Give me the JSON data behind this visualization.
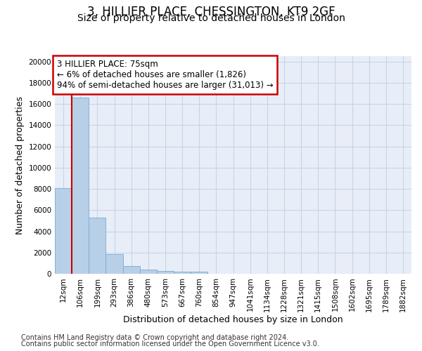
{
  "title_line1": "3, HILLIER PLACE, CHESSINGTON, KT9 2GF",
  "title_line2": "Size of property relative to detached houses in London",
  "xlabel": "Distribution of detached houses by size in London",
  "ylabel": "Number of detached properties",
  "categories": [
    "12sqm",
    "106sqm",
    "199sqm",
    "293sqm",
    "386sqm",
    "480sqm",
    "573sqm",
    "667sqm",
    "760sqm",
    "854sqm",
    "947sqm",
    "1041sqm",
    "1134sqm",
    "1228sqm",
    "1321sqm",
    "1415sqm",
    "1508sqm",
    "1602sqm",
    "1695sqm",
    "1789sqm",
    "1882sqm"
  ],
  "bar_heights": [
    8100,
    16600,
    5300,
    1850,
    700,
    370,
    290,
    230,
    200,
    0,
    0,
    0,
    0,
    0,
    0,
    0,
    0,
    0,
    0,
    0,
    0
  ],
  "bar_color": "#b8cfe8",
  "bar_edge_color": "#7aaad0",
  "grid_color": "#c8d4e4",
  "background_color": "#e8eef8",
  "annotation_text": "3 HILLIER PLACE: 75sqm\n← 6% of detached houses are smaller (1,826)\n94% of semi-detached houses are larger (31,013) →",
  "annotation_box_facecolor": "#ffffff",
  "annotation_box_edgecolor": "#cc0000",
  "marker_line_color": "#cc0000",
  "marker_bar_index": 0,
  "ylim_max": 20500,
  "yticks": [
    0,
    2000,
    4000,
    6000,
    8000,
    10000,
    12000,
    14000,
    16000,
    18000,
    20000
  ],
  "footnote_line1": "Contains HM Land Registry data © Crown copyright and database right 2024.",
  "footnote_line2": "Contains public sector information licensed under the Open Government Licence v3.0.",
  "title_fontsize": 12,
  "subtitle_fontsize": 10,
  "axis_label_fontsize": 9,
  "tick_fontsize": 7.5,
  "annotation_fontsize": 8.5,
  "footnote_fontsize": 7
}
